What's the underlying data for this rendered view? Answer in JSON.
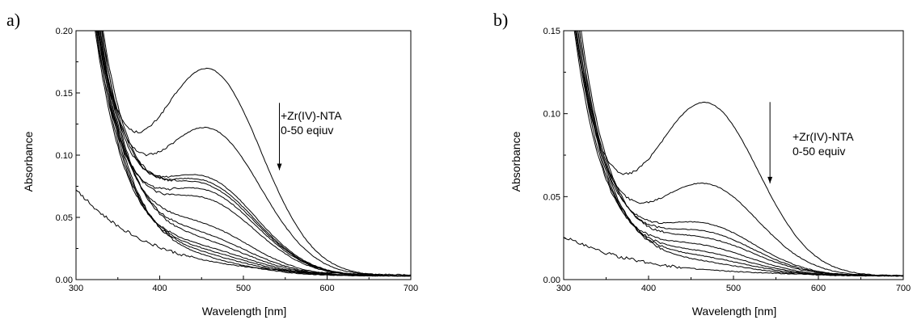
{
  "chart_data": [
    {
      "type": "line",
      "panel_label": "a)",
      "xlabel": "Wavelength [nm]",
      "ylabel": "Absorbance",
      "xlim": [
        300,
        700
      ],
      "ylim": [
        0,
        0.2
      ],
      "xticks": [
        300,
        400,
        500,
        600,
        700
      ],
      "yticks": [
        0.0,
        0.05,
        0.1,
        0.15,
        0.2
      ],
      "ytick_labels": [
        "0.00",
        "0.05",
        "0.10",
        "0.15",
        "0.20"
      ],
      "annotation": [
        "+Zr(IV)-NTA",
        "0-50 eqiuv"
      ],
      "arrow": {
        "x": 543,
        "y_from": 0.142,
        "y_to": 0.088
      },
      "grid": false,
      "uv_tail": {
        "x_cross_top": [
          320,
          322,
          324,
          326,
          328
        ],
        "decay": 40
      },
      "series_peaks": [
        {
          "peak_y": 0.16,
          "peak_x": 460
        },
        {
          "peak_y": 0.112,
          "peak_x": 460
        },
        {
          "peak_y": 0.072,
          "peak_x": 455
        },
        {
          "peak_y": 0.068,
          "peak_x": 455
        },
        {
          "peak_y": 0.065,
          "peak_x": 455
        },
        {
          "peak_y": 0.062,
          "peak_x": 455
        },
        {
          "peak_y": 0.055,
          "peak_x": 455
        },
        {
          "peak_y": 0.034,
          "peak_x": 450
        },
        {
          "peak_y": 0.026,
          "peak_x": 450
        },
        {
          "peak_y": 0.021,
          "peak_x": 450
        },
        {
          "peak_y": 0.017,
          "peak_x": 450
        },
        {
          "peak_y": 0.014,
          "peak_x": 450
        },
        {
          "peak_y": 0.011,
          "peak_x": 450
        },
        {
          "peak_y": 0.008,
          "peak_x": 450
        }
      ]
    },
    {
      "type": "line",
      "panel_label": "b)",
      "xlabel": "Wavelength [nm]",
      "ylabel": "Absorbance",
      "xlim": [
        300,
        700
      ],
      "ylim": [
        0,
        0.15
      ],
      "xticks": [
        300,
        400,
        500,
        600,
        700
      ],
      "yticks": [
        0.0,
        0.05,
        0.1,
        0.15
      ],
      "ytick_labels": [
        "0.00",
        "0.05",
        "0.10",
        "0.15"
      ],
      "annotation": [
        "+Zr(IV)-NTA",
        "0-50 equiv"
      ],
      "arrow": {
        "x": 543,
        "y_from": 0.107,
        "y_to": 0.058
      },
      "grid": false,
      "uv_tail": {
        "x_cross_top": [
          310,
          312,
          314,
          316,
          318
        ],
        "decay": 38
      },
      "series_peaks": [
        {
          "peak_y": 0.102,
          "peak_x": 468
        },
        {
          "peak_y": 0.053,
          "peak_x": 468
        },
        {
          "peak_y": 0.029,
          "peak_x": 465
        },
        {
          "peak_y": 0.024,
          "peak_x": 465
        },
        {
          "peak_y": 0.02,
          "peak_x": 465
        },
        {
          "peak_y": 0.016,
          "peak_x": 460
        },
        {
          "peak_y": 0.012,
          "peak_x": 460
        },
        {
          "peak_y": 0.009,
          "peak_x": 460
        },
        {
          "peak_y": 0.006,
          "peak_x": 460
        }
      ]
    }
  ]
}
